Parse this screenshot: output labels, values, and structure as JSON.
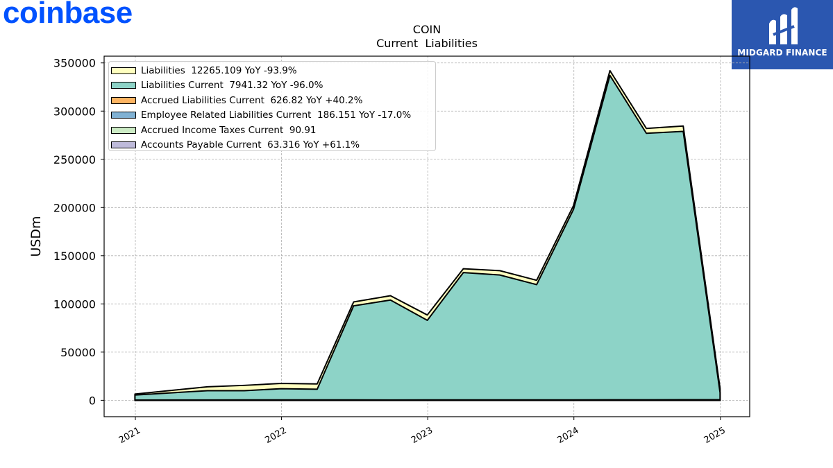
{
  "brand": {
    "logo_text": "coinbase",
    "logo_color": "#0052ff"
  },
  "partner": {
    "name": "MIDGARD FINANCE",
    "bg_color": "#2b57b0"
  },
  "chart_data": {
    "type": "area",
    "title": "COIN",
    "subtitle": "Current  Liabilities",
    "xlabel": "",
    "ylabel": "USDm",
    "x_ticks": [
      "2021",
      "2022",
      "2023",
      "2024",
      "2025"
    ],
    "y_ticks": [
      "0",
      "50000",
      "100000",
      "150000",
      "200000",
      "250000",
      "300000",
      "350000"
    ],
    "ylim": [
      -17000,
      357000
    ],
    "xlim": [
      "2020-10-15",
      "2025-03-15"
    ],
    "grid": true,
    "legend_position": "top-left",
    "x": [
      "2020-12-31",
      "2021-06-30",
      "2021-09-30",
      "2021-12-31",
      "2022-03-31",
      "2022-06-30",
      "2022-09-30",
      "2022-12-31",
      "2023-03-31",
      "2023-06-30",
      "2023-09-30",
      "2023-12-31",
      "2024-03-31",
      "2024-06-30",
      "2024-09-30",
      "2024-12-31"
    ],
    "series": [
      {
        "name": "Liabilities",
        "legend": "Liabilities  12265.109 YoY -93.9%",
        "color": "#ffffc0",
        "values": [
          6500,
          14000,
          15500,
          17500,
          17000,
          102000,
          108500,
          88500,
          136500,
          134500,
          124500,
          202000,
          342000,
          282000,
          284500,
          12265
        ]
      },
      {
        "name": "Liabilities Current",
        "legend": "Liabilities Current  7941.32 YoY -96.0%",
        "color": "#8dd3c7",
        "values": [
          5500,
          10000,
          10000,
          12000,
          11500,
          98000,
          104000,
          83000,
          132500,
          130000,
          120000,
          198000,
          337000,
          277000,
          279000,
          7941
        ]
      },
      {
        "name": "Accrued Liabilities Current",
        "legend": "Accrued Liabilities Current  626.82 YoY +40.2%",
        "color": "#fdb462",
        "values": [
          300,
          350,
          400,
          450,
          420,
          400,
          380,
          400,
          420,
          430,
          430,
          447,
          500,
          550,
          600,
          627
        ]
      },
      {
        "name": "Employee Related Liabilities Current",
        "legend": "Employee Related Liabilities Current  186.151 YoY -17.0%",
        "color": "#80b1d3",
        "values": [
          180,
          200,
          210,
          230,
          220,
          210,
          200,
          210,
          205,
          200,
          205,
          224,
          190,
          185,
          180,
          186
        ]
      },
      {
        "name": "Accrued Income Taxes Current",
        "legend": "Accrued Income Taxes Current  90.91",
        "color": "#ccebc5",
        "values": [
          80,
          90,
          90,
          90,
          90,
          90,
          90,
          90,
          90,
          90,
          90,
          90,
          90,
          90,
          90,
          91
        ]
      },
      {
        "name": "Accounts Payable Current",
        "legend": "Accounts Payable Current  63.316 YoY +61.1%",
        "color": "#bebada",
        "values": [
          40,
          45,
          48,
          50,
          48,
          45,
          42,
          40,
          40,
          39,
          39,
          39,
          45,
          50,
          55,
          63
        ]
      }
    ]
  }
}
